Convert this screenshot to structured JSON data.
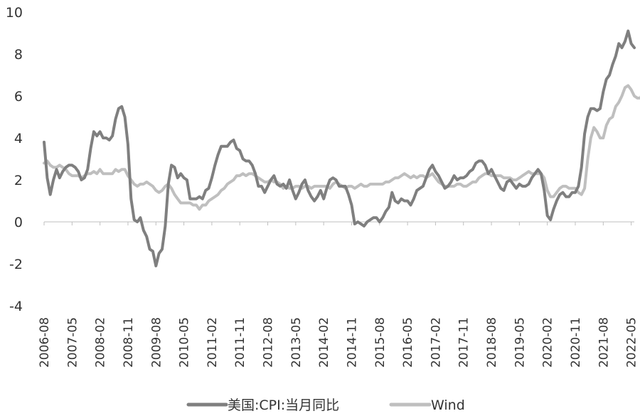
{
  "chart_data": {
    "type": "line",
    "title": "",
    "xlabel": "",
    "ylabel": "",
    "ylim": [
      -4,
      10
    ],
    "yticks": [
      -4,
      -2,
      0,
      2,
      4,
      6,
      8,
      10
    ],
    "grid": false,
    "legend_position": "bottom",
    "xtick_labels": [
      "2006-08",
      "2007-05",
      "2008-02",
      "2008-11",
      "2009-08",
      "2010-05",
      "2011-02",
      "2011-11",
      "2012-08",
      "2013-05",
      "2014-02",
      "2014-11",
      "2015-08",
      "2016-05",
      "2017-02",
      "2017-11",
      "2018-08",
      "2019-05",
      "2020-02",
      "2020-11",
      "2021-08",
      "2022-05"
    ],
    "series": [
      {
        "name": "美国:CPI:当月同比",
        "color": "#7f7f7f",
        "values": [
          3.8,
          2.1,
          1.3,
          2.0,
          2.5,
          2.1,
          2.4,
          2.6,
          2.7,
          2.7,
          2.6,
          2.4,
          2.0,
          2.1,
          2.5,
          3.5,
          4.3,
          4.1,
          4.3,
          4.0,
          4.0,
          3.9,
          4.1,
          4.9,
          5.4,
          5.5,
          5.0,
          3.7,
          1.1,
          0.1,
          0.0,
          0.2,
          -0.4,
          -0.7,
          -1.3,
          -1.4,
          -2.1,
          -1.5,
          -1.3,
          -0.2,
          1.8,
          2.7,
          2.6,
          2.1,
          2.3,
          2.1,
          2.0,
          1.1,
          1.1,
          1.1,
          1.2,
          1.1,
          1.5,
          1.6,
          2.1,
          2.7,
          3.2,
          3.6,
          3.6,
          3.6,
          3.8,
          3.9,
          3.5,
          3.4,
          3.0,
          2.9,
          2.9,
          2.7,
          2.3,
          1.7,
          1.7,
          1.4,
          1.7,
          2.0,
          2.2,
          1.8,
          1.7,
          1.8,
          1.6,
          2.0,
          1.5,
          1.1,
          1.4,
          1.8,
          2.0,
          1.5,
          1.2,
          1.0,
          1.2,
          1.5,
          1.1,
          1.6,
          2.0,
          2.1,
          2.0,
          1.7,
          1.7,
          1.7,
          1.3,
          0.8,
          -0.1,
          0.0,
          -0.1,
          -0.2,
          0.0,
          0.1,
          0.2,
          0.2,
          0.0,
          0.2,
          0.5,
          0.7,
          1.4,
          1.0,
          0.9,
          1.1,
          1.0,
          1.0,
          0.8,
          1.1,
          1.5,
          1.6,
          1.7,
          2.1,
          2.5,
          2.7,
          2.4,
          2.2,
          1.9,
          1.6,
          1.7,
          1.9,
          2.2,
          2.0,
          2.1,
          2.1,
          2.2,
          2.4,
          2.5,
          2.8,
          2.9,
          2.9,
          2.7,
          2.3,
          2.5,
          2.2,
          1.9,
          1.6,
          1.5,
          1.9,
          2.0,
          1.8,
          1.6,
          1.8,
          1.7,
          1.7,
          1.8,
          2.1,
          2.3,
          2.5,
          2.3,
          1.5,
          0.3,
          0.1,
          0.6,
          1.0,
          1.3,
          1.4,
          1.2,
          1.2,
          1.4,
          1.4,
          1.7,
          2.6,
          4.2,
          5.0,
          5.4,
          5.4,
          5.3,
          5.4,
          6.2,
          6.8,
          7.0,
          7.5,
          7.9,
          8.5,
          8.3,
          8.6,
          9.1,
          8.5,
          8.3
        ]
      },
      {
        "name": "Wind",
        "color": "#bfbfbf",
        "values": [
          2.8,
          2.9,
          2.7,
          2.6,
          2.6,
          2.7,
          2.6,
          2.5,
          2.3,
          2.2,
          2.2,
          2.2,
          2.1,
          2.2,
          2.3,
          2.3,
          2.4,
          2.3,
          2.5,
          2.3,
          2.3,
          2.3,
          2.3,
          2.5,
          2.4,
          2.5,
          2.5,
          2.2,
          2.0,
          1.8,
          1.7,
          1.8,
          1.8,
          1.9,
          1.8,
          1.7,
          1.5,
          1.4,
          1.5,
          1.7,
          1.8,
          1.6,
          1.3,
          1.1,
          0.9,
          0.9,
          0.9,
          0.9,
          0.8,
          0.8,
          0.6,
          0.8,
          0.8,
          1.0,
          1.1,
          1.2,
          1.3,
          1.5,
          1.6,
          1.8,
          1.9,
          2.0,
          2.2,
          2.2,
          2.3,
          2.2,
          2.3,
          2.3,
          2.2,
          2.1,
          2.0,
          1.9,
          1.9,
          2.0,
          1.9,
          1.9,
          1.8,
          1.6,
          1.7,
          1.6,
          1.6,
          1.7,
          1.7,
          1.6,
          1.7,
          1.7,
          1.6,
          1.7,
          1.7,
          1.7,
          1.7,
          1.7,
          1.6,
          1.8,
          1.9,
          1.8,
          1.7,
          1.6,
          1.7,
          1.7,
          1.6,
          1.7,
          1.8,
          1.7,
          1.7,
          1.8,
          1.8,
          1.8,
          1.8,
          1.8,
          1.9,
          1.9,
          2.0,
          2.1,
          2.1,
          2.2,
          2.3,
          2.2,
          2.1,
          2.2,
          2.1,
          2.2,
          2.2,
          2.1,
          2.2,
          2.3,
          2.1,
          1.9,
          1.8,
          1.7,
          1.7,
          1.7,
          1.7,
          1.8,
          1.8,
          1.7,
          1.7,
          1.8,
          1.9,
          1.9,
          2.1,
          2.2,
          2.3,
          2.3,
          2.2,
          2.2,
          2.2,
          2.2,
          2.1,
          2.1,
          2.1,
          2.0,
          2.0,
          2.1,
          2.2,
          2.3,
          2.4,
          2.3,
          2.3,
          2.3,
          2.3,
          2.1,
          1.5,
          1.2,
          1.2,
          1.4,
          1.6,
          1.7,
          1.7,
          1.6,
          1.6,
          1.6,
          1.4,
          1.3,
          1.6,
          3.0,
          4.0,
          4.5,
          4.3,
          4.0,
          4.0,
          4.6,
          4.9,
          5.0,
          5.5,
          5.7,
          6.0,
          6.4,
          6.5,
          6.3,
          6.0,
          5.9,
          5.9,
          6.3
        ]
      }
    ]
  }
}
